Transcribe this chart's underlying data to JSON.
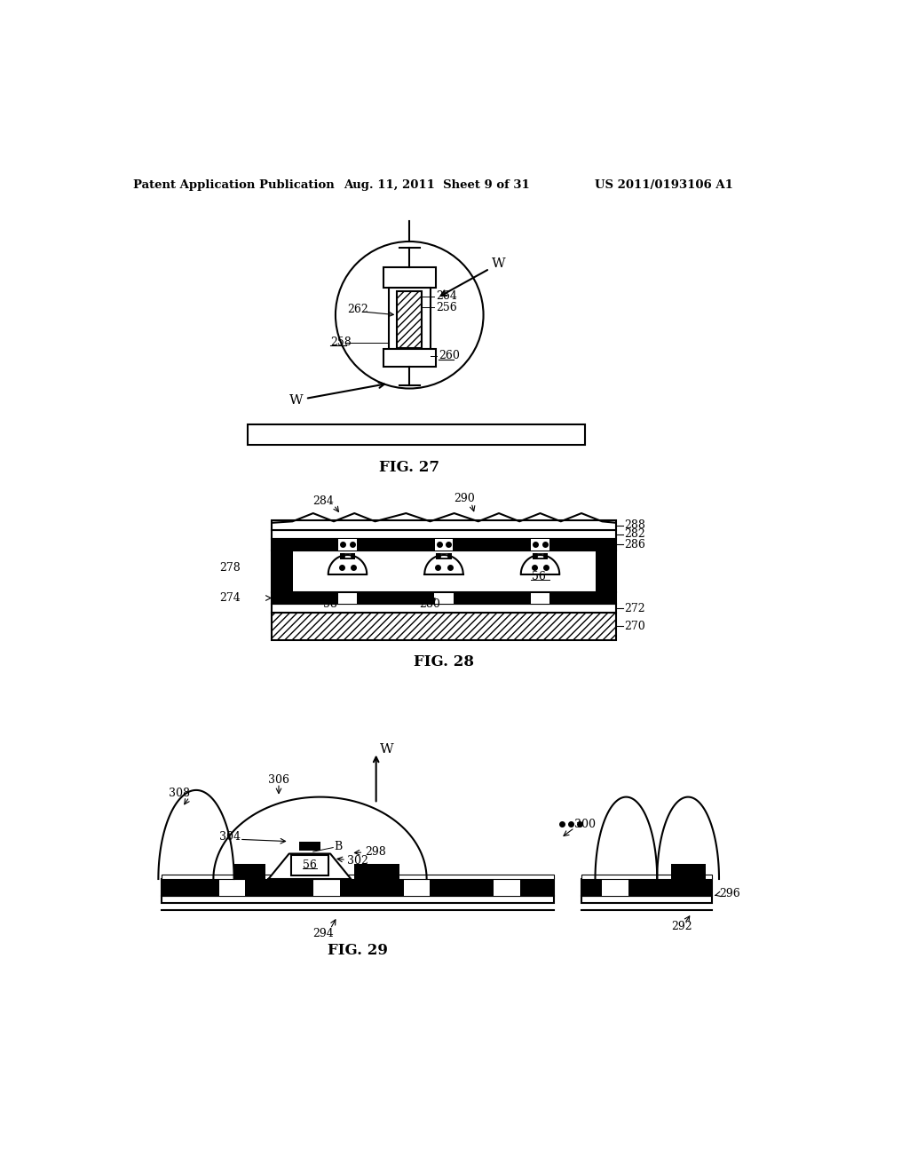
{
  "header_left": "Patent Application Publication",
  "header_mid": "Aug. 11, 2011  Sheet 9 of 31",
  "header_right": "US 2011/0193106 A1",
  "fig27_caption": "FIG. 27",
  "fig28_caption": "FIG. 28",
  "fig29_caption": "FIG. 29",
  "bg_color": "#ffffff",
  "line_color": "#000000"
}
